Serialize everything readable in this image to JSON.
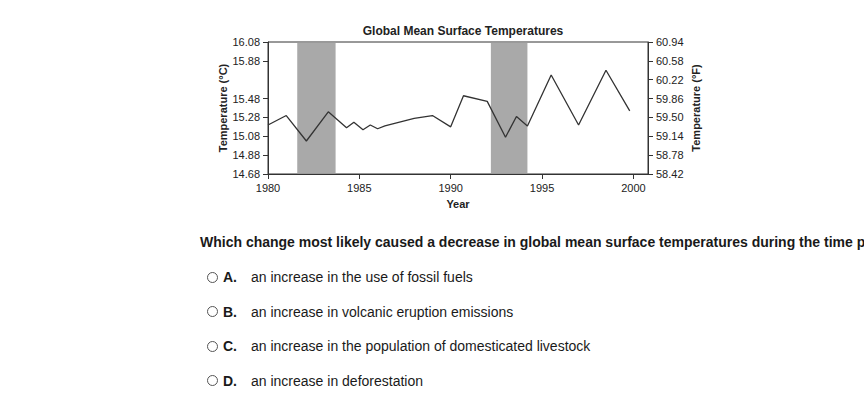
{
  "chart_data": {
    "type": "line",
    "title": "Global Mean Surface Temperatures",
    "x_label": "Year",
    "y_label": "Temperature (°C)",
    "y2_label": "Temperature (°F)",
    "x": [
      1980.0,
      1981.0,
      1982.1,
      1983.3,
      1984.3,
      1984.7,
      1985.2,
      1985.6,
      1986.0,
      1986.4,
      1988.0,
      1989.0,
      1990.0,
      1990.7,
      1992.0,
      1993.0,
      1993.6,
      1994.2,
      1995.5,
      1997.0,
      1998.5,
      1999.8
    ],
    "series": [
      {
        "name": "Global Mean Surface Temperature",
        "color": "#333333",
        "values": [
          15.2,
          15.3,
          15.03,
          15.34,
          15.17,
          15.23,
          15.15,
          15.2,
          15.16,
          15.19,
          15.27,
          15.3,
          15.18,
          15.51,
          15.45,
          15.07,
          15.29,
          15.19,
          15.73,
          15.2,
          15.78,
          15.35
        ]
      }
    ],
    "shaded_periods": [
      [
        1981.6,
        1983.7
      ],
      [
        1992.2,
        1994.2
      ]
    ],
    "xlim": [
      1980,
      2000.8
    ],
    "xticks": [
      1980,
      1985,
      1990,
      1995,
      2000
    ],
    "ylim": [
      14.68,
      16.08
    ],
    "yticks": [
      14.68,
      14.88,
      15.08,
      15.28,
      15.48,
      15.88,
      16.08
    ],
    "y2lim": [
      58.42,
      60.94
    ],
    "y2ticks": [
      58.42,
      58.78,
      59.14,
      {
        "value": 59.5,
        "label": "59.50"
      },
      59.86,
      60.22,
      60.58,
      60.94
    ],
    "grid": false
  },
  "question": "Which change most likely caused a decrease in global mean surface temperatures during the time periods shaded on the graph?",
  "options": [
    {
      "letter": "A.",
      "text": "an increase in the use of fossil fuels"
    },
    {
      "letter": "B.",
      "text": "an increase in volcanic eruption emissions"
    },
    {
      "letter": "C.",
      "text": "an increase in the population of domesticated livestock"
    },
    {
      "letter": "D.",
      "text": "an increase in deforestation"
    }
  ]
}
